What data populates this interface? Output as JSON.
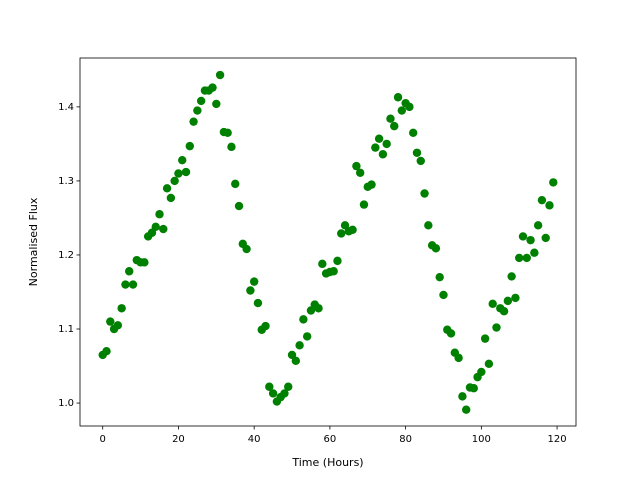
{
  "chart_data": {
    "type": "scatter",
    "xlabel": "Time (Hours)",
    "ylabel": "Normalised Flux",
    "color": "#008000",
    "grid": false,
    "x": [
      0,
      1,
      2,
      3,
      4,
      5,
      6,
      7,
      8,
      9,
      10,
      11,
      12,
      13,
      14,
      15,
      16,
      17,
      18,
      19,
      20,
      21,
      22,
      23,
      24,
      25,
      26,
      27,
      28,
      29,
      30,
      31,
      32,
      33,
      34,
      35,
      36,
      37,
      38,
      39,
      40,
      41,
      42,
      43,
      44,
      45,
      46,
      47,
      48,
      49,
      50,
      51,
      52,
      53,
      54,
      55,
      56,
      57,
      58,
      59,
      60,
      61,
      62,
      63,
      64,
      65,
      66,
      67,
      68,
      69,
      70,
      71,
      72,
      73,
      74,
      75,
      76,
      77,
      78,
      79,
      80,
      81,
      82,
      83,
      84,
      85,
      86,
      87,
      88,
      89,
      90,
      91,
      92,
      93,
      94,
      95,
      96,
      97,
      98,
      99,
      100,
      101,
      102,
      103,
      104,
      105,
      106,
      107,
      108,
      109,
      110,
      111,
      112,
      113,
      114,
      115,
      116,
      117,
      118,
      119
    ],
    "values": [
      1.065,
      1.07,
      1.11,
      1.1,
      1.105,
      1.128,
      1.16,
      1.178,
      1.16,
      1.193,
      1.19,
      1.19,
      1.225,
      1.23,
      1.238,
      1.255,
      1.235,
      1.29,
      1.277,
      1.3,
      1.31,
      1.328,
      1.312,
      1.347,
      1.38,
      1.395,
      1.408,
      1.422,
      1.422,
      1.426,
      1.404,
      1.443,
      1.366,
      1.365,
      1.346,
      1.296,
      1.266,
      1.215,
      1.208,
      1.152,
      1.164,
      1.135,
      1.099,
      1.104,
      1.022,
      1.013,
      1.002,
      1.008,
      1.013,
      1.022,
      1.065,
      1.057,
      1.078,
      1.113,
      1.09,
      1.125,
      1.133,
      1.128,
      1.188,
      1.175,
      1.177,
      1.178,
      1.192,
      1.229,
      1.24,
      1.232,
      1.234,
      1.32,
      1.311,
      1.268,
      1.292,
      1.295,
      1.345,
      1.357,
      1.336,
      1.35,
      1.384,
      1.374,
      1.413,
      1.395,
      1.405,
      1.4,
      1.365,
      1.338,
      1.327,
      1.283,
      1.24,
      1.213,
      1.209,
      1.17,
      1.146,
      1.099,
      1.094,
      1.068,
      1.061,
      1.009,
      0.991,
      1.021,
      1.02,
      1.035,
      1.042,
      1.087,
      1.053,
      1.134,
      1.102,
      1.128,
      1.124,
      1.138,
      1.171,
      1.142,
      1.196,
      1.225,
      1.196,
      1.22,
      1.203,
      1.24,
      1.274,
      1.223,
      1.267,
      1.298
    ],
    "xlim": [
      -6,
      125
    ],
    "xticks": [
      0,
      20,
      40,
      60,
      80,
      100,
      120
    ],
    "ylim": [
      0.969,
      1.466
    ],
    "yticks": [
      {
        "value": 1,
        "label": "1.0"
      },
      1.1,
      1.2,
      1.3,
      1.4
    ]
  }
}
